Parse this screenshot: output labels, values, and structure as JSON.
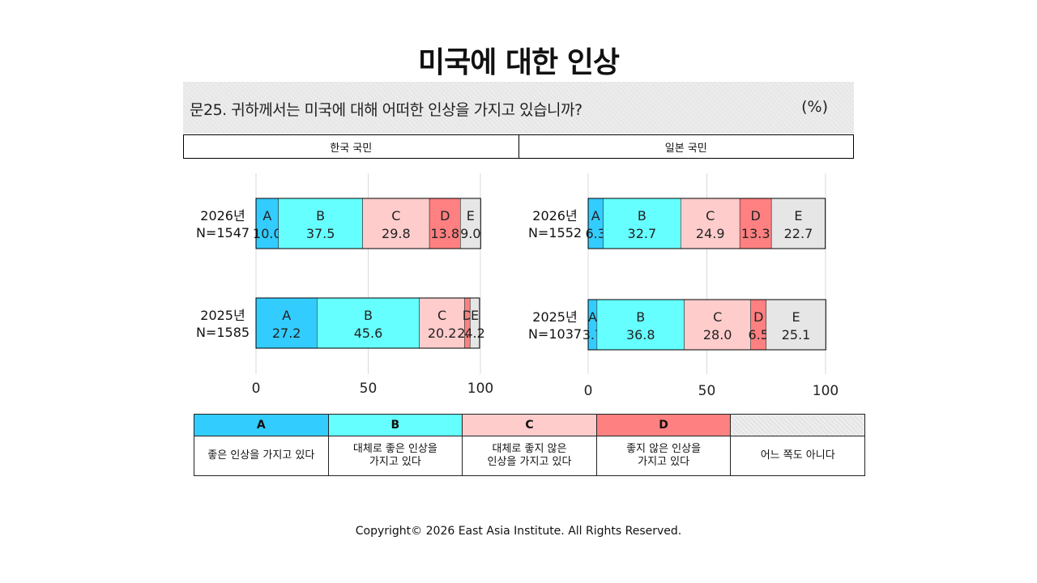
{
  "title": "미국에 대한 인상",
  "question": "문25. 귀하께서는 미국에 대해 어떠한 인상을 가지고 있습니까?",
  "unit": "(%)",
  "panels": [
    "한국 국민",
    "일본 국민"
  ],
  "colors": {
    "A": "#33ccff",
    "B": "#66ffff",
    "C": "#ffcccc",
    "D": "#ff8080",
    "E": "#e6e6e6"
  },
  "legend": [
    {
      "code": "A",
      "desc": "좋은 인상을 가지고 있다"
    },
    {
      "code": "B",
      "desc": "대체로 좋은 인상을\n가지고 있다"
    },
    {
      "code": "C",
      "desc": "대체로 좋지 않은\n인상을 가지고 있다"
    },
    {
      "code": "D",
      "desc": "좋지 않은 인상을\n가지고 있다"
    },
    {
      "code": "",
      "desc": "어느 쪽도 아니다"
    }
  ],
  "copyright": "Copyright© 2026 East Asia Institute. All Rights Reserved.",
  "chart_data": [
    {
      "type": "bar",
      "orientation": "horizontal",
      "stacked": true,
      "title": "한국 국민",
      "categories": [
        "2026년\nN=1547",
        "2025년\nN=1585"
      ],
      "series": [
        {
          "name": "A",
          "values": [
            10.0,
            27.2
          ]
        },
        {
          "name": "B",
          "values": [
            37.5,
            45.6
          ]
        },
        {
          "name": "C",
          "values": [
            29.8,
            20.2
          ]
        },
        {
          "name": "D",
          "values": [
            13.8,
            2.4
          ]
        },
        {
          "name": "E",
          "values": [
            9.0,
            4.2
          ]
        }
      ],
      "xlim": [
        0,
        100
      ],
      "xticks": [
        0,
        50,
        100
      ],
      "grid": true
    },
    {
      "type": "bar",
      "orientation": "horizontal",
      "stacked": true,
      "title": "일본 국민",
      "categories": [
        "2026년\nN=1552",
        "2025년\nN=1037"
      ],
      "series": [
        {
          "name": "A",
          "values": [
            6.3,
            3.7
          ]
        },
        {
          "name": "B",
          "values": [
            32.7,
            36.8
          ]
        },
        {
          "name": "C",
          "values": [
            24.9,
            28.0
          ]
        },
        {
          "name": "D",
          "values": [
            13.3,
            6.5
          ]
        },
        {
          "name": "E",
          "values": [
            22.7,
            25.1
          ]
        }
      ],
      "xlim": [
        0,
        100
      ],
      "xticks": [
        0,
        50,
        100
      ],
      "grid": true
    }
  ]
}
